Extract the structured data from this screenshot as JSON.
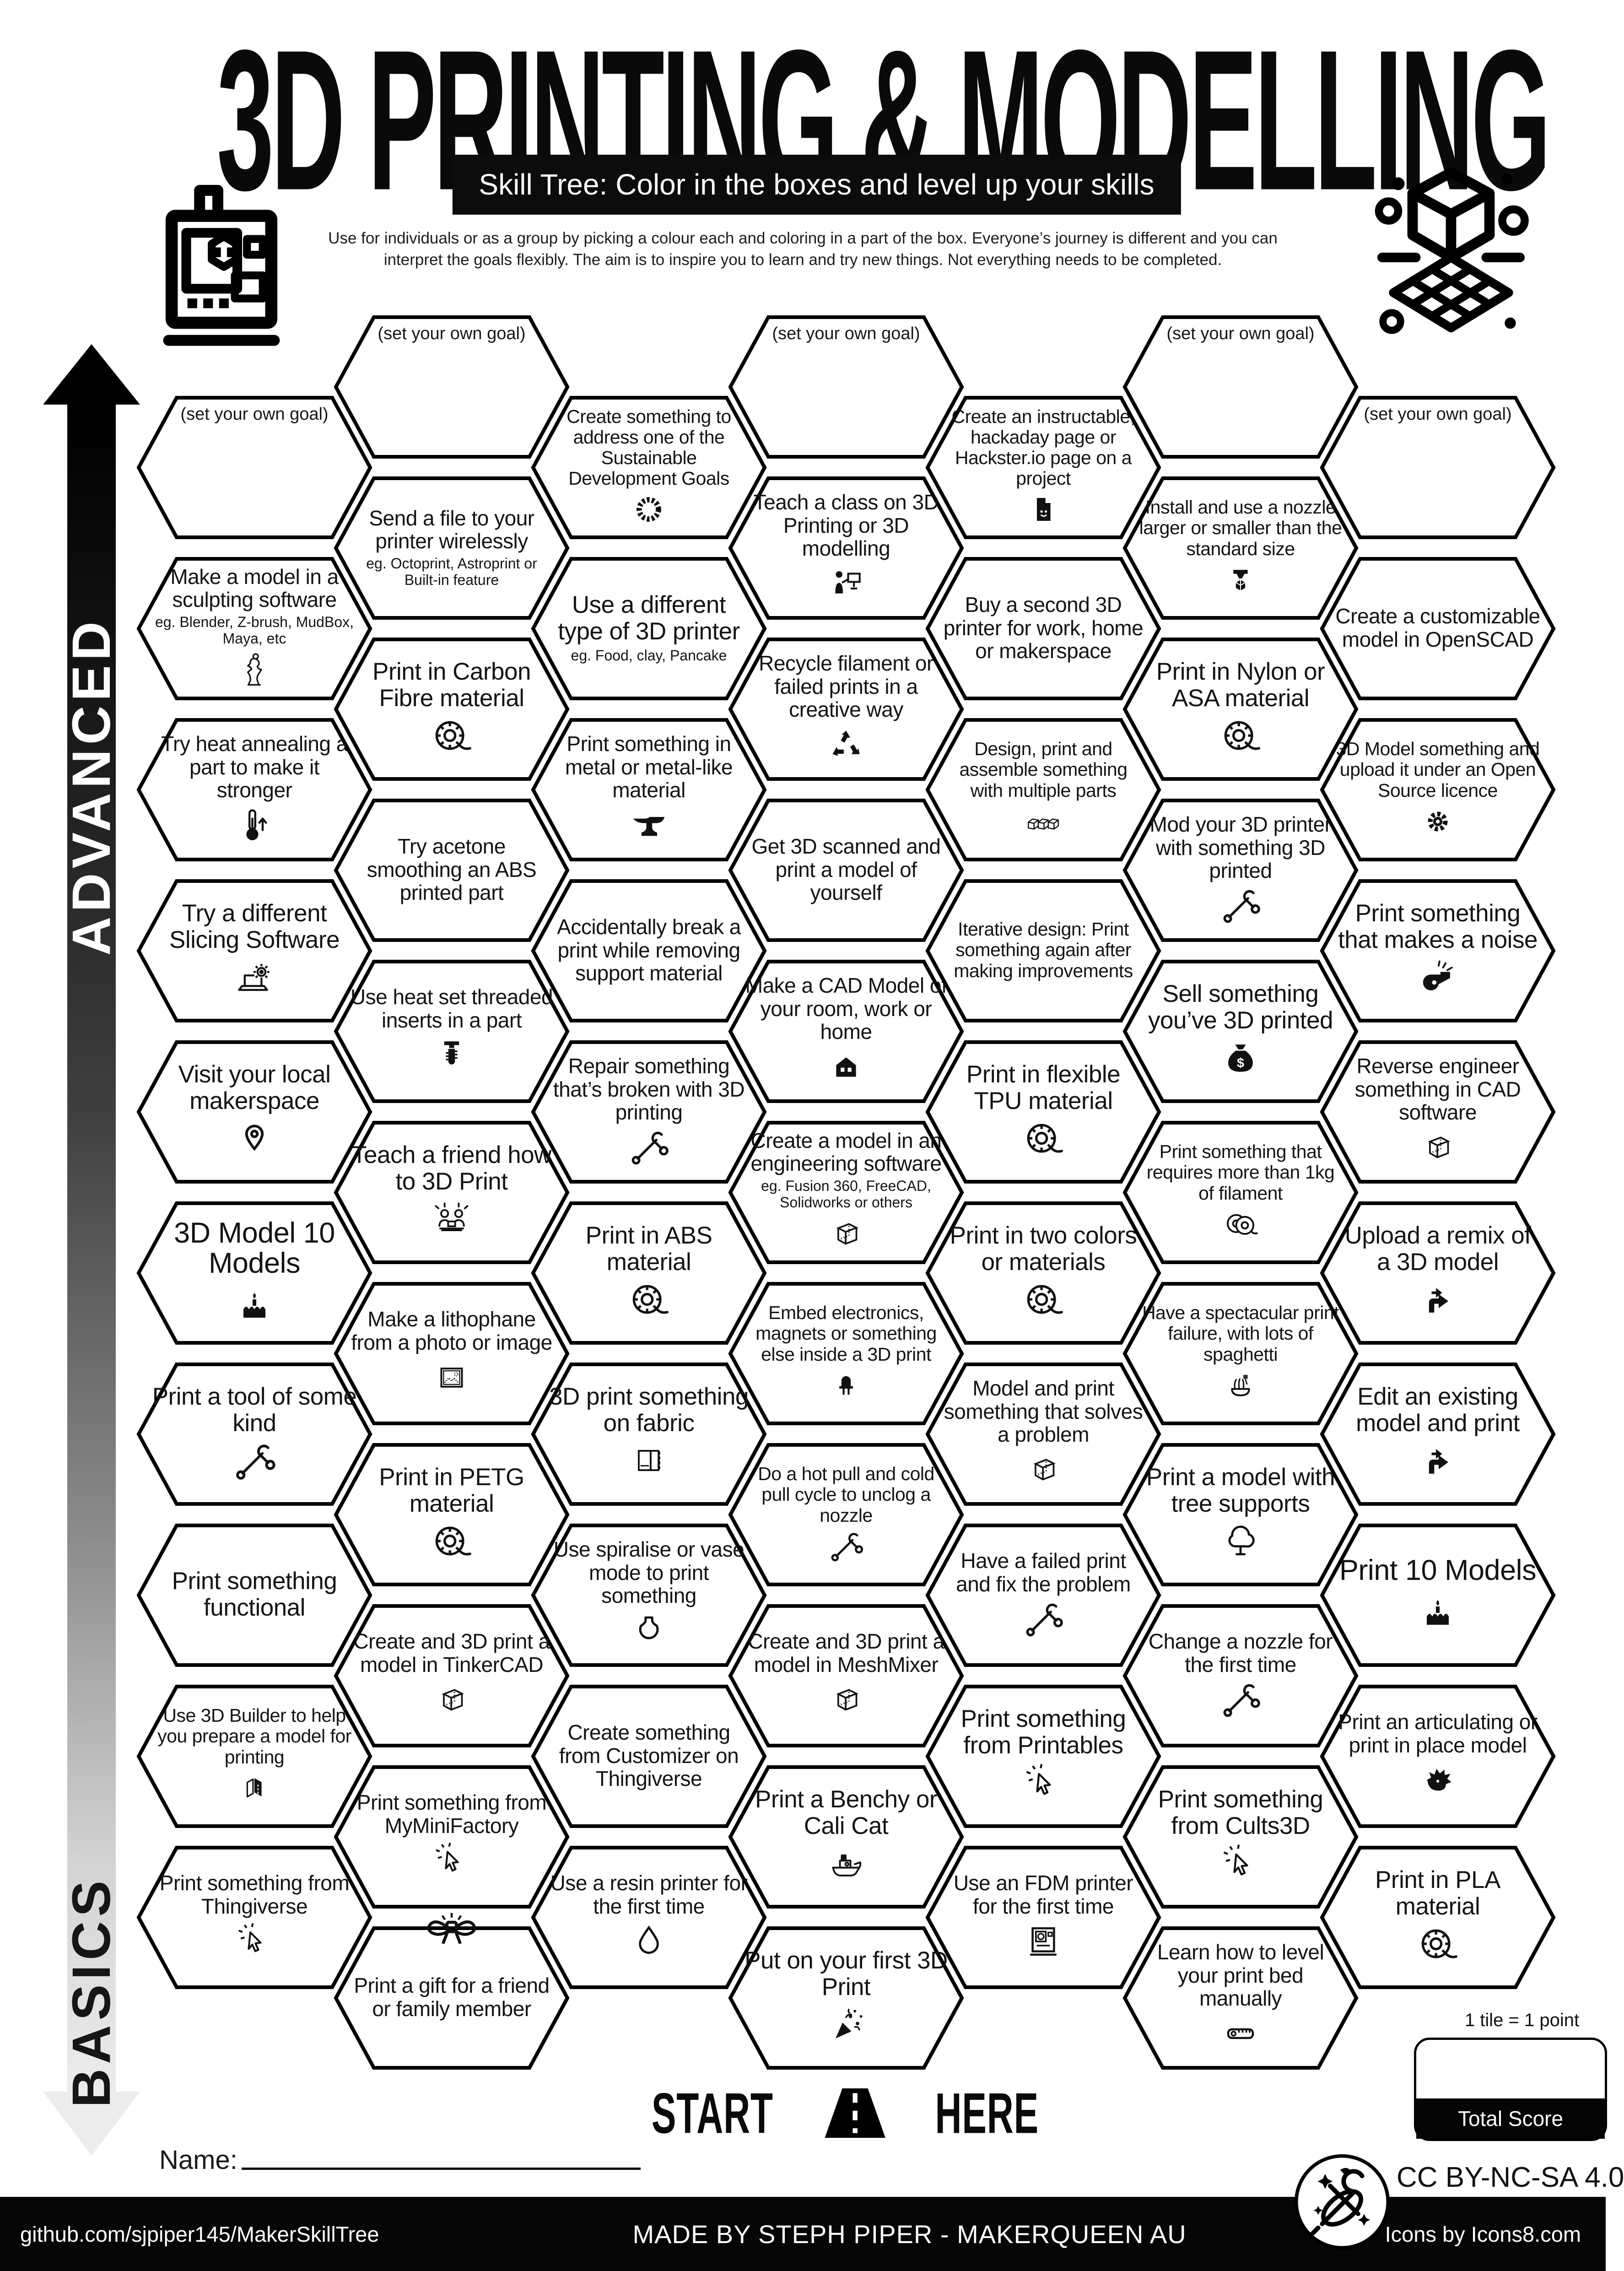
{
  "header": {
    "title": "3D PRINTING & MODELLING",
    "subtitle": "Skill Tree:  Color in the boxes and level up your skills",
    "desc1": "Use for individuals or as a group by picking a colour each and coloring in a part of the box.  Everyone’s journey is different and you can",
    "desc2": "interpret the goals flexibly.  The aim is to inspire you to learn and try new things. Not everything needs to be completed."
  },
  "side_labels": {
    "advanced": "ADVANCED",
    "basics": "BASICS"
  },
  "goal_label": "(set your own goal)",
  "start": {
    "start": "START",
    "here": "HERE"
  },
  "name_label": "Name:",
  "score": {
    "tile_point": "1 tile = 1 point",
    "total": "Total Score"
  },
  "license": "CC BY-NC-SA 4.0",
  "footer": {
    "left": "github.com/sjpiper145/MakerSkillTree",
    "center": "MADE BY STEPH PIPER  -  MAKERQUEEN AU",
    "right": "Icons by Icons8.com"
  },
  "columns": [
    {
      "tiles": [
        {
          "goal": true
        },
        {
          "label": "Make a model in a sculpting software",
          "sub": "eg. Blender, Z-brush, MudBox, Maya, etc",
          "icon": "statue",
          "size": "m"
        },
        {
          "label": "Try heat annealing a part to make it stronger",
          "icon": "thermometer",
          "size": "m"
        },
        {
          "label": "Try a different Slicing Software",
          "icon": "laptop-gear",
          "size": "l"
        },
        {
          "label": "Visit your local makerspace",
          "icon": "pin",
          "size": "l"
        },
        {
          "label": "3D Model 10 Models",
          "icon": "cake",
          "size": "xl"
        },
        {
          "label": "Print a tool of some kind",
          "icon": "tools",
          "size": "l"
        },
        {
          "label": "Print something functional",
          "size": "l"
        },
        {
          "label": "Use 3D Builder to help you prepare a model for printing",
          "icon": "builder",
          "size": "s"
        },
        {
          "label": "Print something from Thingiverse",
          "icon": "cursor",
          "size": "m"
        }
      ]
    },
    {
      "tiles": [
        {
          "goal": true
        },
        {
          "label": "Send a file to your printer wirelessly",
          "sub": "eg. Octoprint, Astroprint or Built-in feature",
          "size": "m"
        },
        {
          "label": "Print in Carbon Fibre material",
          "icon": "spool",
          "size": "l"
        },
        {
          "label": "Try acetone smoothing an ABS printed part",
          "size": "m"
        },
        {
          "label": "Use heat set threaded inserts in a part",
          "icon": "screw",
          "size": "m"
        },
        {
          "label": "Teach a friend how to 3D Print",
          "icon": "people",
          "size": "l"
        },
        {
          "label": "Make a lithophane from a photo or image",
          "icon": "picture",
          "size": "m"
        },
        {
          "label": "Print in PETG material",
          "icon": "spool",
          "size": "l"
        },
        {
          "label": "Create and 3D print a model in TinkerCAD",
          "icon": "cube",
          "size": "m"
        },
        {
          "label": "Print something from MyMiniFactory",
          "icon": "cursor",
          "size": "m"
        },
        {
          "label": "Print a gift for a friend or family member",
          "icon": "bow",
          "size": "m"
        }
      ]
    },
    {
      "tiles": [
        {
          "label": "Create something to address one of the Sustainable Development Goals",
          "icon": "sdg",
          "size": "s"
        },
        {
          "label": "Use a different type of 3D printer",
          "sub": "eg. Food, clay, Pancake",
          "size": "l"
        },
        {
          "label": "Print something in metal or metal-like material",
          "icon": "anvil",
          "size": "m"
        },
        {
          "label": "Accidentally break a print while removing support material",
          "size": "m"
        },
        {
          "label": "Repair something that’s broken with 3D printing",
          "icon": "tools",
          "size": "m"
        },
        {
          "label": "Print in ABS material",
          "icon": "spool",
          "size": "l"
        },
        {
          "label": "3D print something on fabric",
          "icon": "fabric",
          "size": "l"
        },
        {
          "label": "Use spiralise or vase mode to print something",
          "icon": "vase",
          "size": "m"
        },
        {
          "label": "Create something from Customizer on Thingiverse",
          "size": "m"
        },
        {
          "label": "Use a resin printer for the first time",
          "icon": "droplet",
          "size": "m"
        }
      ]
    },
    {
      "tiles": [
        {
          "goal": true
        },
        {
          "label": "Teach a class on 3D Printing or 3D modelling",
          "icon": "teacher",
          "size": "m"
        },
        {
          "label": "Recycle filament or failed prints in a creative way",
          "icon": "recycle",
          "size": "m"
        },
        {
          "label": "Get 3D scanned and print a model of yourself",
          "size": "m"
        },
        {
          "label": "Make a CAD Model of your room, work or home",
          "icon": "house",
          "size": "m"
        },
        {
          "label": "Create a model in an engineering software",
          "sub": "eg. Fusion 360, FreeCAD, Solidworks or others",
          "icon": "cube",
          "size": "m"
        },
        {
          "label": "Embed electronics, magnets or something else inside a 3D print",
          "icon": "led",
          "size": "s"
        },
        {
          "label": "Do a hot pull and cold pull cycle to unclog a nozzle",
          "icon": "tools",
          "size": "s"
        },
        {
          "label": "Create and 3D print a model in MeshMixer",
          "icon": "cube",
          "size": "m"
        },
        {
          "label": "Print a Benchy or Cali Cat",
          "icon": "boat",
          "size": "l"
        },
        {
          "label": "Put on your first 3D Print",
          "icon": "party",
          "size": "l"
        }
      ]
    },
    {
      "tiles": [
        {
          "label": "Create an instructable, hackaday page or Hackster.io page on a project",
          "icon": "document",
          "size": "s"
        },
        {
          "label": "Buy a second 3D printer for work, home or makerspace",
          "size": "m"
        },
        {
          "label": "Design, print and assemble something with multiple parts",
          "icon": "cubes",
          "size": "s"
        },
        {
          "label": "Iterative design: Print something again after making improvements",
          "size": "s"
        },
        {
          "label": "Print in flexible TPU material",
          "icon": "spool",
          "size": "l"
        },
        {
          "label": "Print in two colors or materials",
          "icon": "spool",
          "size": "l"
        },
        {
          "label": "Model and print something that solves a problem",
          "icon": "cube",
          "size": "m"
        },
        {
          "label": "Have a failed print and fix the problem",
          "icon": "tools",
          "size": "m"
        },
        {
          "label": "Print something from Printables",
          "icon": "cursor",
          "size": "l"
        },
        {
          "label": "Use an FDM printer for the first time",
          "icon": "printer",
          "size": "m"
        }
      ]
    },
    {
      "tiles": [
        {
          "goal": true
        },
        {
          "label": "Install and use a nozzle larger or smaller than the standard size",
          "icon": "nozzle",
          "size": "s"
        },
        {
          "label": "Print in Nylon or ASA material",
          "icon": "spool",
          "size": "l"
        },
        {
          "label": "Mod your 3D printer with something 3D printed",
          "icon": "tools",
          "size": "m"
        },
        {
          "label": "Sell something you’ve 3D printed",
          "icon": "money",
          "size": "l"
        },
        {
          "label": "Print something that requires more than 1kg of filament",
          "icon": "spool2",
          "size": "s"
        },
        {
          "label": "Have a spectacular print failure, with lots of spaghetti",
          "icon": "noodles",
          "size": "s"
        },
        {
          "label": "Print a model with tree supports",
          "icon": "tree",
          "size": "l"
        },
        {
          "label": "Change a nozzle for the first time",
          "icon": "tools",
          "size": "m"
        },
        {
          "label": "Print something from Cults3D",
          "icon": "cursor",
          "size": "l"
        },
        {
          "label": "Learn how to level your print bed manually",
          "icon": "ruler",
          "size": "m"
        }
      ]
    },
    {
      "tiles": [
        {
          "goal": true
        },
        {
          "label": "Create a customizable model in OpenSCAD",
          "size": "m"
        },
        {
          "label": "3D Model something and upload it under an Open Source licence",
          "icon": "gear",
          "size": "s"
        },
        {
          "label": "Print something that makes a noise",
          "icon": "whistle",
          "size": "l"
        },
        {
          "label": "Reverse engineer something in CAD software",
          "icon": "cube",
          "size": "m"
        },
        {
          "label": "Upload a remix of a 3D model",
          "icon": "remix",
          "size": "l"
        },
        {
          "label": "Edit an existing model and print",
          "icon": "remix",
          "size": "l"
        },
        {
          "label": "Print 10 Models",
          "icon": "cake",
          "size": "xl"
        },
        {
          "label": "Print an articulating or print in place model",
          "icon": "dragon",
          "size": "m"
        },
        {
          "label": "Print in PLA material",
          "icon": "spool",
          "size": "l"
        }
      ]
    }
  ]
}
